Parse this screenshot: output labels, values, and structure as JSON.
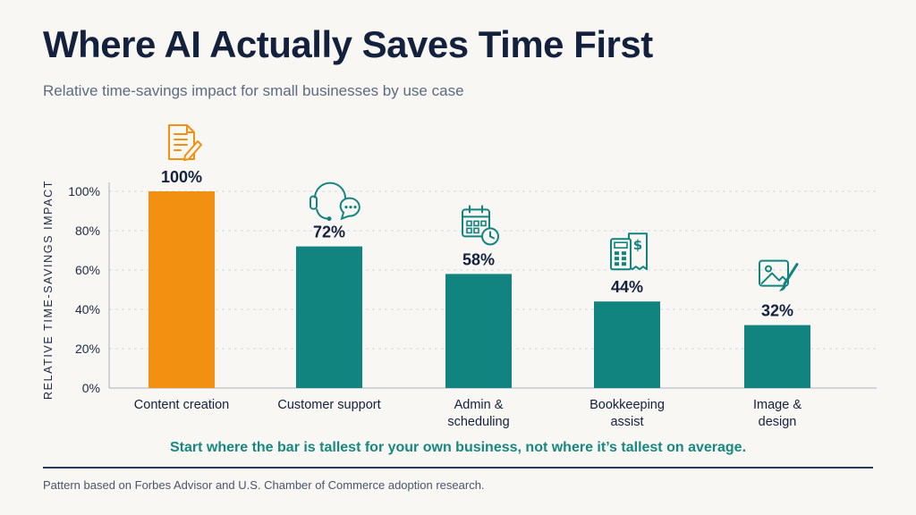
{
  "header": {
    "title": "Where AI Actually Saves Time First",
    "subtitle": "Relative time-savings impact for small businesses by use case"
  },
  "chart_data": {
    "type": "bar",
    "categories": [
      [
        "Content creation"
      ],
      [
        "Customer support"
      ],
      [
        "Admin &",
        "scheduling"
      ],
      [
        "Bookkeeping",
        "assist"
      ],
      [
        "Image &",
        "design"
      ]
    ],
    "values": [
      100,
      72,
      58,
      44,
      32
    ],
    "data_labels": [
      "100%",
      "72%",
      "58%",
      "44%",
      "32%"
    ],
    "ylabel": "RELATIVE TIME-SAVINGS IMPACT",
    "ylim": [
      0,
      100
    ],
    "yticks": [
      "0%",
      "20%",
      "40%",
      "60%",
      "80%",
      "100%"
    ],
    "grid": true,
    "colors": [
      "#f29111",
      "#12847f",
      "#12847f",
      "#12847f",
      "#12847f"
    ],
    "highlight_color": "#f29111",
    "bar_color": "#12847f",
    "icons": [
      "document-pen-icon",
      "headset-chat-icon",
      "calendar-clock-icon",
      "calculator-receipt-icon",
      "image-brush-icon"
    ]
  },
  "takeaway": "Start where the bar is tallest for your own business, not where it’s tallest on average.",
  "footnote": "Pattern based on Forbes Advisor and U.S. Chamber of Commerce adoption research."
}
